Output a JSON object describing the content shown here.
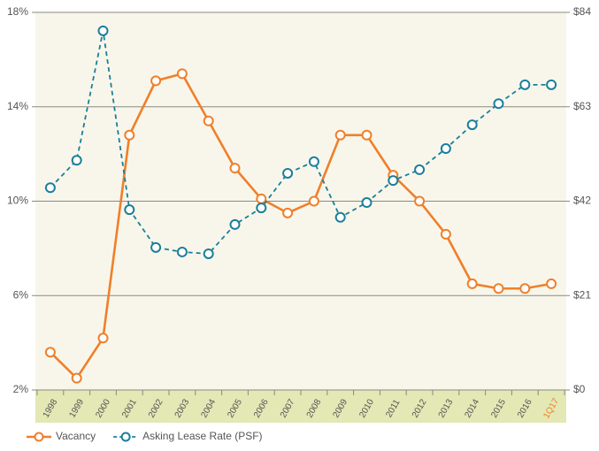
{
  "chart_data": {
    "type": "line",
    "categories": [
      "1998",
      "1999",
      "2000",
      "2001",
      "2002",
      "2003",
      "2004",
      "2005",
      "2006",
      "2007",
      "2008",
      "2009",
      "2010",
      "2011",
      "2012",
      "2013",
      "2014",
      "2015",
      "2016",
      "1Q17"
    ],
    "x_label_color": "#555555",
    "last_x_label_color": "#f07f2a",
    "series": [
      {
        "name": "Vacancy",
        "color": "#f07f2a",
        "dashed": false,
        "values": [
          3.6,
          2.5,
          4.2,
          12.8,
          15.1,
          15.4,
          13.4,
          11.4,
          10.1,
          9.5,
          10.0,
          12.8,
          12.8,
          11.1,
          10.0,
          8.6,
          6.5,
          6.3,
          6.3,
          6.5
        ]
      },
      {
        "name": "Asking Lease Rate (PSF)",
        "color": "#1b7f9a",
        "dashed": true,
        "axis": "y2",
        "values": [
          45.0,
          51.1,
          79.9,
          40.1,
          31.7,
          30.7,
          30.3,
          36.8,
          40.5,
          48.2,
          50.8,
          38.4,
          41.7,
          46.6,
          49.0,
          53.7,
          59.0,
          63.7,
          67.9,
          67.9
        ]
      }
    ],
    "ylim": [
      2,
      18
    ],
    "yticks": [
      {
        "value": 2,
        "label": "2%"
      },
      {
        "value": 6,
        "label": "6%"
      },
      {
        "value": 10,
        "label": "10%"
      },
      {
        "value": 14,
        "label": "14%"
      },
      {
        "value": 18,
        "label": "18%"
      }
    ],
    "y2lim": [
      0,
      84
    ],
    "y2ticks": [
      {
        "value": 0,
        "label": "$0"
      },
      {
        "value": 21,
        "label": "$21"
      },
      {
        "value": 42,
        "label": "$42"
      },
      {
        "value": 63,
        "label": "$63"
      },
      {
        "value": 84,
        "label": "$84"
      }
    ],
    "grid": true,
    "legend": "bottom-left"
  }
}
